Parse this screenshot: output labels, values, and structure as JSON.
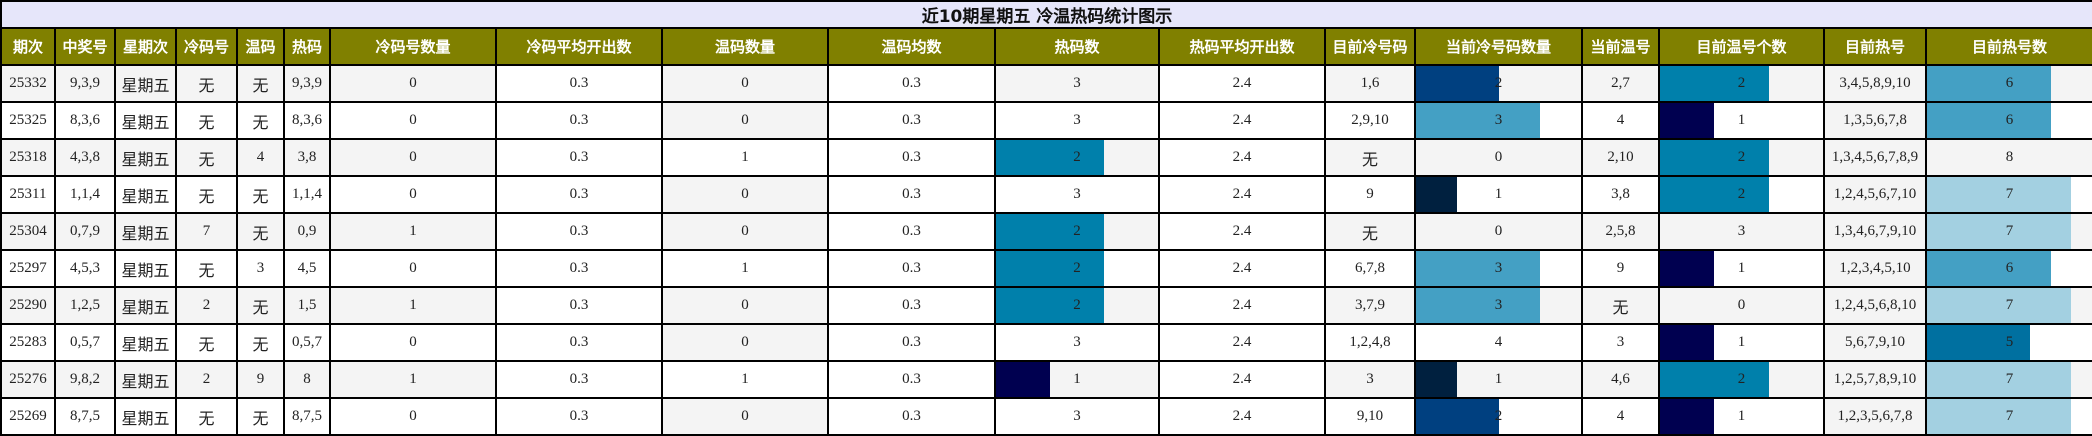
{
  "title": "近10期星期五 冷温热码统计图示",
  "headers": [
    "期次",
    "中奖号",
    "星期次",
    "冷码号",
    "温码",
    "热码",
    "冷码号数量",
    "冷码平均开出数",
    "温码数量",
    "温码均数",
    "热码数",
    "热码平均开出数",
    "目前冷号码",
    "当前冷号码数量",
    "当前温号",
    "目前温号个数",
    "目前热号",
    "目前热号数"
  ],
  "bar_colors": {
    "value_1_dark_navy": "#000050",
    "value_1_cold": "#00203f",
    "value_2_cold": "#004080",
    "value_2": "#0080ab",
    "value_3": "#44a0c4",
    "value_5": "#0070a0",
    "value_6": "#44a0c4",
    "value_7": "#a3d0e1"
  },
  "theme": {
    "title_bg": "#e6e6fa",
    "header_bg": "#808000",
    "header_text": "#ffffff",
    "stripe_bg": "#f4f4f4"
  },
  "rows": [
    {
      "issue": "25332",
      "winning": "9,3,9",
      "weekday": "星期五",
      "cold": "无",
      "warm": "无",
      "hot": "9,3,9",
      "cold_count": "0",
      "cold_avg": "0.3",
      "warm_count": "0",
      "warm_avg": "0.3",
      "hot_count": "3",
      "hot_avg": "2.4",
      "cur_cold": "1,6",
      "cur_cold_count": "2",
      "cur_warm": "2,7",
      "cur_warm_count": "2",
      "cur_hot": "3,4,5,8,9,10",
      "cur_hot_count": "6"
    },
    {
      "issue": "25325",
      "winning": "8,3,6",
      "weekday": "星期五",
      "cold": "无",
      "warm": "无",
      "hot": "8,3,6",
      "cold_count": "0",
      "cold_avg": "0.3",
      "warm_count": "0",
      "warm_avg": "0.3",
      "hot_count": "3",
      "hot_avg": "2.4",
      "cur_cold": "2,9,10",
      "cur_cold_count": "3",
      "cur_warm": "4",
      "cur_warm_count": "1",
      "cur_hot": "1,3,5,6,7,8",
      "cur_hot_count": "6"
    },
    {
      "issue": "25318",
      "winning": "4,3,8",
      "weekday": "星期五",
      "cold": "无",
      "warm": "4",
      "hot": "3,8",
      "cold_count": "0",
      "cold_avg": "0.3",
      "warm_count": "1",
      "warm_avg": "0.3",
      "hot_count": "2",
      "hot_avg": "2.4",
      "cur_cold": "无",
      "cur_cold_count": "0",
      "cur_warm": "2,10",
      "cur_warm_count": "2",
      "cur_hot": "1,3,4,5,6,7,8,9",
      "cur_hot_count": "8"
    },
    {
      "issue": "25311",
      "winning": "1,1,4",
      "weekday": "星期五",
      "cold": "无",
      "warm": "无",
      "hot": "1,1,4",
      "cold_count": "0",
      "cold_avg": "0.3",
      "warm_count": "0",
      "warm_avg": "0.3",
      "hot_count": "3",
      "hot_avg": "2.4",
      "cur_cold": "9",
      "cur_cold_count": "1",
      "cur_warm": "3,8",
      "cur_warm_count": "2",
      "cur_hot": "1,2,4,5,6,7,10",
      "cur_hot_count": "7"
    },
    {
      "issue": "25304",
      "winning": "0,7,9",
      "weekday": "星期五",
      "cold": "7",
      "warm": "无",
      "hot": "0,9",
      "cold_count": "1",
      "cold_avg": "0.3",
      "warm_count": "0",
      "warm_avg": "0.3",
      "hot_count": "2",
      "hot_avg": "2.4",
      "cur_cold": "无",
      "cur_cold_count": "0",
      "cur_warm": "2,5,8",
      "cur_warm_count": "3",
      "cur_hot": "1,3,4,6,7,9,10",
      "cur_hot_count": "7"
    },
    {
      "issue": "25297",
      "winning": "4,5,3",
      "weekday": "星期五",
      "cold": "无",
      "warm": "3",
      "hot": "4,5",
      "cold_count": "0",
      "cold_avg": "0.3",
      "warm_count": "1",
      "warm_avg": "0.3",
      "hot_count": "2",
      "hot_avg": "2.4",
      "cur_cold": "6,7,8",
      "cur_cold_count": "3",
      "cur_warm": "9",
      "cur_warm_count": "1",
      "cur_hot": "1,2,3,4,5,10",
      "cur_hot_count": "6"
    },
    {
      "issue": "25290",
      "winning": "1,2,5",
      "weekday": "星期五",
      "cold": "2",
      "warm": "无",
      "hot": "1,5",
      "cold_count": "1",
      "cold_avg": "0.3",
      "warm_count": "0",
      "warm_avg": "0.3",
      "hot_count": "2",
      "hot_avg": "2.4",
      "cur_cold": "3,7,9",
      "cur_cold_count": "3",
      "cur_warm": "无",
      "cur_warm_count": "0",
      "cur_hot": "1,2,4,5,6,8,10",
      "cur_hot_count": "7"
    },
    {
      "issue": "25283",
      "winning": "0,5,7",
      "weekday": "星期五",
      "cold": "无",
      "warm": "无",
      "hot": "0,5,7",
      "cold_count": "0",
      "cold_avg": "0.3",
      "warm_count": "0",
      "warm_avg": "0.3",
      "hot_count": "3",
      "hot_avg": "2.4",
      "cur_cold": "1,2,4,8",
      "cur_cold_count": "4",
      "cur_warm": "3",
      "cur_warm_count": "1",
      "cur_hot": "5,6,7,9,10",
      "cur_hot_count": "5"
    },
    {
      "issue": "25276",
      "winning": "9,8,2",
      "weekday": "星期五",
      "cold": "2",
      "warm": "9",
      "hot": "8",
      "cold_count": "1",
      "cold_avg": "0.3",
      "warm_count": "1",
      "warm_avg": "0.3",
      "hot_count": "1",
      "hot_avg": "2.4",
      "cur_cold": "3",
      "cur_cold_count": "1",
      "cur_warm": "4,6",
      "cur_warm_count": "2",
      "cur_hot": "1,2,5,7,8,9,10",
      "cur_hot_count": "7"
    },
    {
      "issue": "25269",
      "winning": "8,7,5",
      "weekday": "星期五",
      "cold": "无",
      "warm": "无",
      "hot": "8,7,5",
      "cold_count": "0",
      "cold_avg": "0.3",
      "warm_count": "0",
      "warm_avg": "0.3",
      "hot_count": "3",
      "hot_avg": "2.4",
      "cur_cold": "9,10",
      "cur_cold_count": "2",
      "cur_warm": "4",
      "cur_warm_count": "1",
      "cur_hot": "1,2,3,5,6,7,8",
      "cur_hot_count": "7"
    }
  ]
}
